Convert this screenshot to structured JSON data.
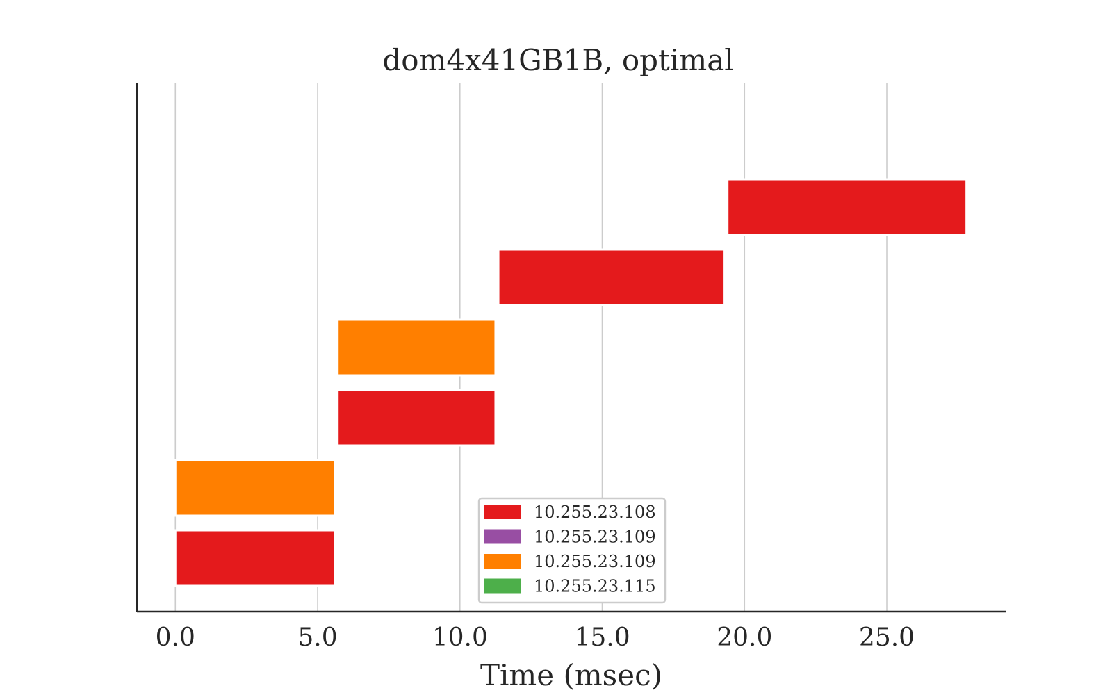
{
  "chart_data": {
    "type": "gantt",
    "title": "dom4x41GB1B, optimal",
    "xlabel": "Time (msec)",
    "ylabel": "",
    "xlim": [
      -1.35,
      29.2
    ],
    "xticks": [
      0,
      5,
      10,
      15,
      20,
      25
    ],
    "xtick_labels": [
      "0.0",
      "5.0",
      "10.0",
      "15.0",
      "20.0",
      "25.0"
    ],
    "grid": "vertical",
    "legend_position": "bottom-center",
    "series": [
      {
        "name": "10.255.23.108",
        "color": "#e41a1c"
      },
      {
        "name": "10.255.23.109",
        "color": "#984ea3"
      },
      {
        "name": "10.255.23.109",
        "color": "#ff7f00"
      },
      {
        "name": "10.255.23.115",
        "color": "#4daf4a"
      }
    ],
    "tasks": [
      {
        "row": 0,
        "start": 0.0,
        "end": 5.6,
        "series": 0
      },
      {
        "row": 1,
        "start": 0.0,
        "end": 5.6,
        "series": 2
      },
      {
        "row": 2,
        "start": 5.7,
        "end": 11.25,
        "series": 0
      },
      {
        "row": 3,
        "start": 5.7,
        "end": 11.25,
        "series": 2
      },
      {
        "row": 4,
        "start": 11.35,
        "end": 19.3,
        "series": 0
      },
      {
        "row": 5,
        "start": 19.4,
        "end": 27.8,
        "series": 0
      }
    ]
  }
}
